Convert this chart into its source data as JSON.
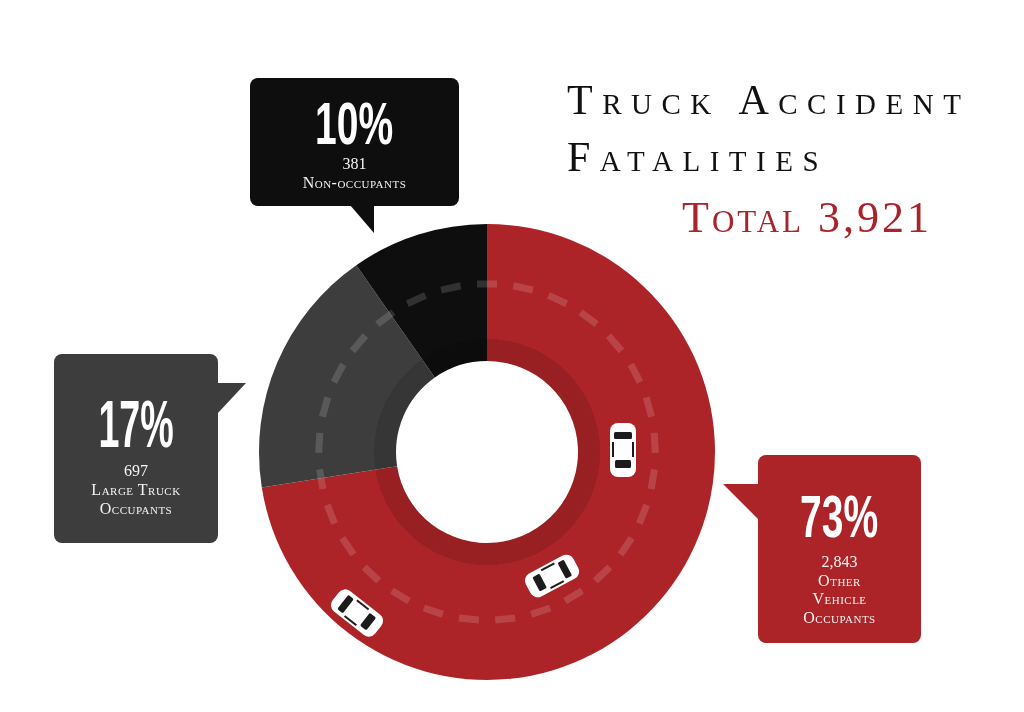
{
  "chart_data": {
    "type": "donut",
    "title": "Truck Accident Fatalities",
    "subtitle": "Total 3,921",
    "categories": [
      "Other Vehicle Occupants",
      "Large Truck Occupants",
      "Non-occupants"
    ],
    "values": [
      2843,
      697,
      381
    ],
    "colors": [
      "#ad2428",
      "#3d3d3d",
      "#0e0e0e"
    ],
    "value_labels": [
      "73%\n2,843",
      "17%\n697",
      "10%\n381"
    ]
  }
}
